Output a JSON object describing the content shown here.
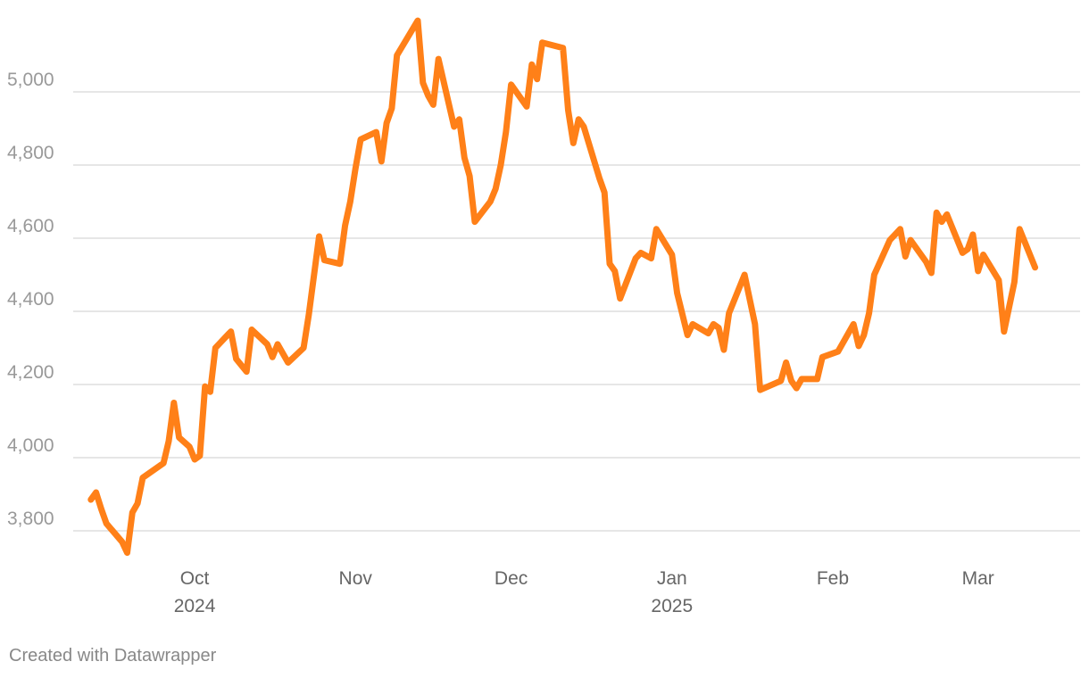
{
  "chart_data": {
    "type": "line",
    "title": "",
    "xlabel": "",
    "ylabel": "",
    "ylim": [
      3700,
      5200
    ],
    "xlim": [
      "2024-09-10",
      "2025-03-10"
    ],
    "grid": true,
    "y_ticks": [
      {
        "value": 3800,
        "label": "3,800"
      },
      {
        "value": 4000,
        "label": "4,000"
      },
      {
        "value": 4200,
        "label": "4,200"
      },
      {
        "value": 4400,
        "label": "4,400"
      },
      {
        "value": 4600,
        "label": "4,600"
      },
      {
        "value": 4800,
        "label": "4,800"
      },
      {
        "value": 5000,
        "label": "5,000"
      }
    ],
    "x_ticks": [
      {
        "date": "2024-10-01",
        "label": "Oct",
        "sublabel": "2024"
      },
      {
        "date": "2024-11-01",
        "label": "Nov",
        "sublabel": ""
      },
      {
        "date": "2024-12-01",
        "label": "Dec",
        "sublabel": ""
      },
      {
        "date": "2025-01-01",
        "label": "Jan",
        "sublabel": "2025"
      },
      {
        "date": "2025-02-01",
        "label": "Feb",
        "sublabel": ""
      },
      {
        "date": "2025-03-01",
        "label": "Mar",
        "sublabel": ""
      }
    ],
    "series": [
      {
        "color": "#ff8018",
        "points": [
          [
            "2024-09-11",
            3885
          ],
          [
            "2024-09-12",
            3905
          ],
          [
            "2024-09-13",
            3860
          ],
          [
            "2024-09-14",
            3820
          ],
          [
            "2024-09-17",
            3770
          ],
          [
            "2024-09-18",
            3740
          ],
          [
            "2024-09-19",
            3850
          ],
          [
            "2024-09-20",
            3875
          ],
          [
            "2024-09-21",
            3945
          ],
          [
            "2024-09-25",
            3985
          ],
          [
            "2024-09-26",
            4045
          ],
          [
            "2024-09-27",
            4150
          ],
          [
            "2024-09-28",
            4055
          ],
          [
            "2024-09-30",
            4030
          ],
          [
            "2024-10-01",
            3995
          ],
          [
            "2024-10-02",
            4005
          ],
          [
            "2024-10-03",
            4195
          ],
          [
            "2024-10-04",
            4180
          ],
          [
            "2024-10-05",
            4300
          ],
          [
            "2024-10-07",
            4330
          ],
          [
            "2024-10-08",
            4345
          ],
          [
            "2024-10-09",
            4270
          ],
          [
            "2024-10-11",
            4235
          ],
          [
            "2024-10-12",
            4350
          ],
          [
            "2024-10-15",
            4310
          ],
          [
            "2024-10-16",
            4275
          ],
          [
            "2024-10-17",
            4310
          ],
          [
            "2024-10-19",
            4260
          ],
          [
            "2024-10-22",
            4300
          ],
          [
            "2024-10-23",
            4390
          ],
          [
            "2024-10-25",
            4605
          ],
          [
            "2024-10-26",
            4540
          ],
          [
            "2024-10-29",
            4530
          ],
          [
            "2024-10-30",
            4635
          ],
          [
            "2024-10-31",
            4700
          ],
          [
            "2024-11-01",
            4790
          ],
          [
            "2024-11-02",
            4870
          ],
          [
            "2024-11-05",
            4890
          ],
          [
            "2024-11-06",
            4810
          ],
          [
            "2024-11-07",
            4915
          ],
          [
            "2024-11-08",
            4955
          ],
          [
            "2024-11-09",
            5100
          ],
          [
            "2024-11-13",
            5195
          ],
          [
            "2024-11-14",
            5025
          ],
          [
            "2024-11-15",
            4990
          ],
          [
            "2024-11-16",
            4965
          ],
          [
            "2024-11-17",
            5090
          ],
          [
            "2024-11-20",
            4905
          ],
          [
            "2024-11-21",
            4925
          ],
          [
            "2024-11-22",
            4820
          ],
          [
            "2024-11-23",
            4770
          ],
          [
            "2024-11-24",
            4645
          ],
          [
            "2024-11-27",
            4700
          ],
          [
            "2024-11-28",
            4735
          ],
          [
            "2024-11-29",
            4800
          ],
          [
            "2024-11-30",
            4890
          ],
          [
            "2024-12-01",
            5020
          ],
          [
            "2024-12-04",
            4960
          ],
          [
            "2024-12-05",
            5075
          ],
          [
            "2024-12-06",
            5035
          ],
          [
            "2024-12-07",
            5135
          ],
          [
            "2024-12-11",
            5120
          ],
          [
            "2024-12-12",
            4950
          ],
          [
            "2024-12-13",
            4860
          ],
          [
            "2024-12-14",
            4925
          ],
          [
            "2024-12-15",
            4905
          ],
          [
            "2024-12-18",
            4765
          ],
          [
            "2024-12-19",
            4725
          ],
          [
            "2024-12-20",
            4530
          ],
          [
            "2024-12-21",
            4510
          ],
          [
            "2024-12-22",
            4435
          ],
          [
            "2024-12-25",
            4545
          ],
          [
            "2024-12-26",
            4560
          ],
          [
            "2024-12-28",
            4545
          ],
          [
            "2024-12-29",
            4625
          ],
          [
            "2025-01-01",
            4555
          ],
          [
            "2025-01-02",
            4450
          ],
          [
            "2025-01-04",
            4335
          ],
          [
            "2025-01-05",
            4365
          ],
          [
            "2025-01-08",
            4340
          ],
          [
            "2025-01-09",
            4365
          ],
          [
            "2025-01-10",
            4355
          ],
          [
            "2025-01-11",
            4295
          ],
          [
            "2025-01-12",
            4395
          ],
          [
            "2025-01-15",
            4500
          ],
          [
            "2025-01-17",
            4365
          ],
          [
            "2025-01-18",
            4185
          ],
          [
            "2025-01-22",
            4210
          ],
          [
            "2025-01-23",
            4260
          ],
          [
            "2025-01-24",
            4210
          ],
          [
            "2025-01-25",
            4190
          ],
          [
            "2025-01-26",
            4215
          ],
          [
            "2025-01-29",
            4215
          ],
          [
            "2025-01-30",
            4275
          ],
          [
            "2025-02-02",
            4290
          ],
          [
            "2025-02-05",
            4365
          ],
          [
            "2025-02-06",
            4305
          ],
          [
            "2025-02-07",
            4335
          ],
          [
            "2025-02-08",
            4395
          ],
          [
            "2025-02-09",
            4500
          ],
          [
            "2025-02-12",
            4595
          ],
          [
            "2025-02-14",
            4625
          ],
          [
            "2025-02-15",
            4550
          ],
          [
            "2025-02-16",
            4595
          ],
          [
            "2025-02-19",
            4535
          ],
          [
            "2025-02-20",
            4505
          ],
          [
            "2025-02-21",
            4670
          ],
          [
            "2025-02-22",
            4645
          ],
          [
            "2025-02-23",
            4665
          ],
          [
            "2025-02-26",
            4560
          ],
          [
            "2025-02-27",
            4570
          ],
          [
            "2025-02-28",
            4610
          ],
          [
            "2025-03-01",
            4510
          ],
          [
            "2025-03-02",
            4555
          ],
          [
            "2025-03-05",
            4485
          ],
          [
            "2025-03-06",
            4345
          ],
          [
            "2025-03-08",
            4480
          ],
          [
            "2025-03-09",
            4625
          ],
          [
            "2025-03-12",
            4520
          ]
        ]
      }
    ]
  },
  "footer": {
    "credit": "Created with Datawrapper"
  }
}
